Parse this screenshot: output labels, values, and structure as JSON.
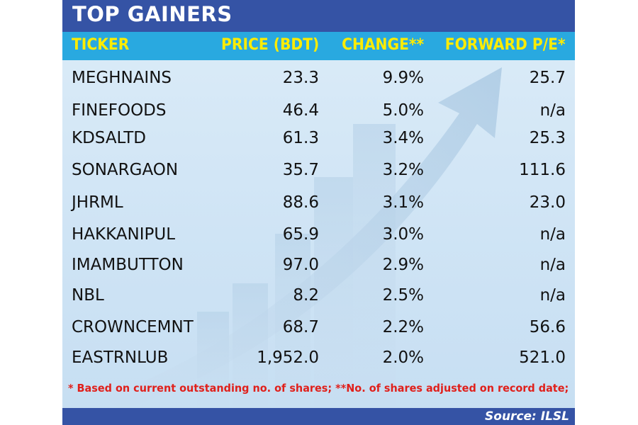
{
  "title": "TOP GAINERS",
  "headers": {
    "ticker": "TICKER",
    "price": "PRICE (BDT)",
    "change": "CHANGE**",
    "pe": "FORWARD P/E*"
  },
  "rows": [
    {
      "ticker": "MEGHNAINS",
      "price": "23.3",
      "change": "9.9%",
      "pe": "25.7"
    },
    {
      "ticker": "FINEFOODS",
      "price": "46.4",
      "change": "5.0%",
      "pe": "n/a"
    },
    {
      "ticker": "KDSALTD",
      "price": "61.3",
      "change": "3.4%",
      "pe": "25.3"
    },
    {
      "ticker": "SONARGAON",
      "price": "35.7",
      "change": "3.2%",
      "pe": "111.6"
    },
    {
      "ticker": "JHRML",
      "price": "88.6",
      "change": "3.1%",
      "pe": "23.0"
    },
    {
      "ticker": "HAKKANIPUL",
      "price": "65.9",
      "change": "3.0%",
      "pe": "n/a"
    },
    {
      "ticker": "IMAMBUTTON",
      "price": "97.0",
      "change": "2.9%",
      "pe": "n/a"
    },
    {
      "ticker": "NBL",
      "price": "8.2",
      "change": "2.5%",
      "pe": "n/a"
    },
    {
      "ticker": "CROWNCEMNT",
      "price": "68.7",
      "change": "2.2%",
      "pe": "56.6"
    },
    {
      "ticker": "EASTRNLUB",
      "price": "1,952.0",
      "change": "2.0%",
      "pe": "521.0"
    }
  ],
  "footnote": "* Based on current outstanding no. of shares; **No. of shares adjusted on record date;",
  "source": "Source: ILSL",
  "colors": {
    "title_bar": "#3553a5",
    "header_bar": "#29a9e0",
    "header_text": "#ffec00",
    "footnote_text": "#e0201b",
    "background": "#d6e8f6"
  }
}
